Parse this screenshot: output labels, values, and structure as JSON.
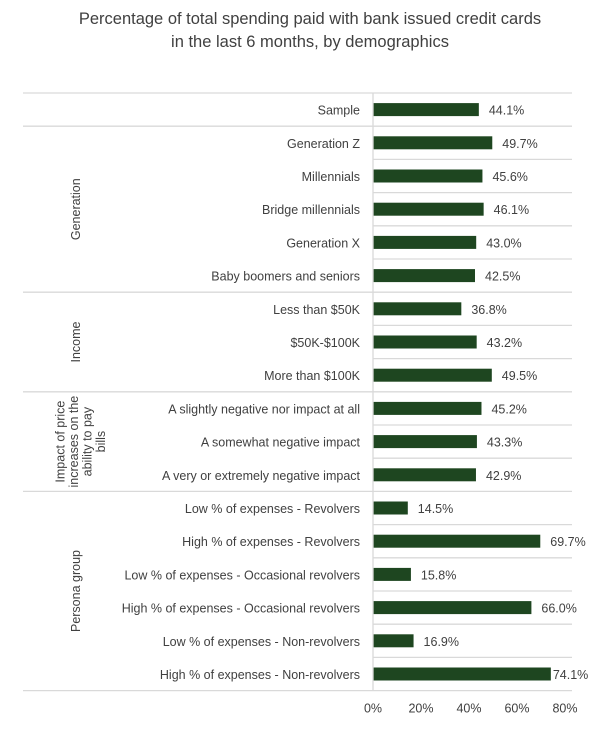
{
  "chart_data": {
    "type": "bar",
    "orientation": "horizontal",
    "title_lines": [
      "Percentage of total spending paid with bank issued credit cards",
      "in the last 6 months, by demographics"
    ],
    "groups": [
      {
        "label": "",
        "categories": [
          "Sample"
        ],
        "values": [
          44.1
        ]
      },
      {
        "label": "Generation",
        "categories": [
          "Generation Z",
          "Millennials",
          "Bridge millennials",
          "Generation X",
          "Baby boomers and seniors"
        ],
        "values": [
          49.7,
          45.6,
          46.1,
          43.0,
          42.5
        ]
      },
      {
        "label": "Income",
        "categories": [
          "Less than $50K",
          "$50K-$100K",
          "More than $100K"
        ],
        "values": [
          36.8,
          43.2,
          49.5
        ]
      },
      {
        "label": "Impact of price increases on the ability to pay bills",
        "label_lines": [
          "Impact of price",
          "increases on the",
          "ability to pay",
          "bills"
        ],
        "categories": [
          "A slightly negative nor impact at all",
          "A somewhat negative impact",
          "A very or extremely negative impact"
        ],
        "values": [
          45.2,
          43.3,
          42.9
        ]
      },
      {
        "label": "Persona group",
        "categories": [
          "Low % of expenses - Revolvers",
          "High % of expenses - Revolvers",
          "Low % of expenses - Occasional revolvers",
          "High % of expenses - Occasional revolvers",
          "Low % of expenses - Non-revolvers",
          "High % of expenses - Non-revolvers"
        ],
        "values": [
          14.5,
          69.7,
          15.8,
          66.0,
          16.9,
          74.1
        ]
      }
    ],
    "value_format": "{v}%",
    "xlim": [
      0,
      80
    ],
    "xticks": [
      "0%",
      "20%",
      "40%",
      "60%",
      "80%"
    ],
    "xtick_values": [
      0,
      20,
      40,
      60,
      80
    ],
    "bar_color": "#1e4620",
    "grid": false,
    "legend": "none"
  }
}
